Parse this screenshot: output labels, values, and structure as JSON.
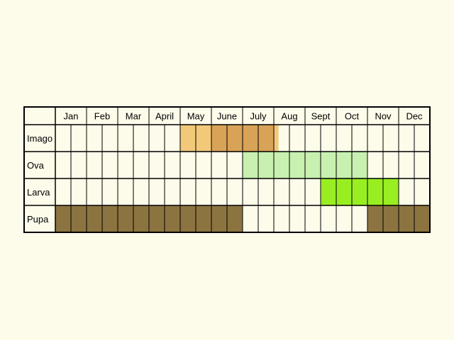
{
  "chart_data": {
    "type": "table",
    "months": [
      "Jan",
      "Feb",
      "Mar",
      "April",
      "May",
      "June",
      "July",
      "Aug",
      "Sept",
      "Oct",
      "Nov",
      "Dec"
    ],
    "cells_per_month": 2,
    "rows": [
      {
        "label": "Imago",
        "spans": [
          {
            "start": 8,
            "end": 10,
            "color": "#f2c879"
          },
          {
            "start": 10,
            "end": 14,
            "color": "#d8a257"
          },
          {
            "start": 14,
            "end": 14.3,
            "color": "#f2c879"
          }
        ]
      },
      {
        "label": "Ova",
        "spans": [
          {
            "start": 12,
            "end": 20,
            "color": "#c8f0b0"
          }
        ]
      },
      {
        "label": "Larva",
        "spans": [
          {
            "start": 17,
            "end": 18,
            "color": "#99ee22"
          },
          {
            "start": 18,
            "end": 22,
            "color": "#99ee22"
          }
        ]
      },
      {
        "label": "Pupa",
        "spans": [
          {
            "start": 0,
            "end": 12,
            "color": "#8c7441"
          },
          {
            "start": 20,
            "end": 24,
            "color": "#8c7441"
          }
        ]
      }
    ],
    "colors": {
      "background": "#fdfbea",
      "cell": "#fdfbea",
      "grid": "#000000"
    }
  }
}
